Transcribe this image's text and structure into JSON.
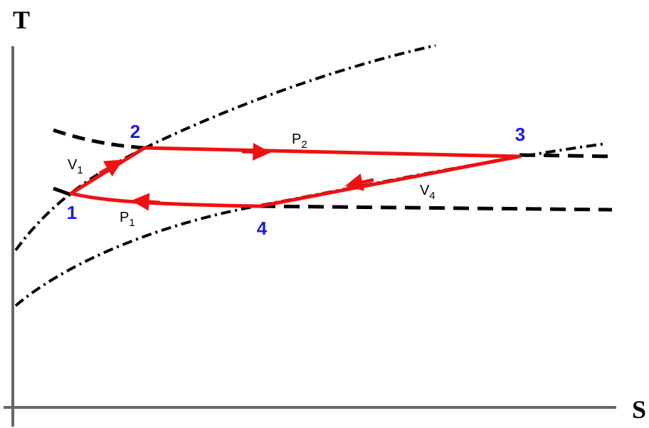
{
  "axes": {
    "y_label": "T",
    "x_label": "S"
  },
  "points": [
    {
      "label": "1"
    },
    {
      "label": "2"
    },
    {
      "label": "3"
    },
    {
      "label": "4"
    }
  ],
  "processes": [
    {
      "label": "V",
      "subscript": "1"
    },
    {
      "label": "P",
      "subscript": "2"
    },
    {
      "label": "V",
      "subscript": "4"
    },
    {
      "label": "P",
      "subscript": "1"
    }
  ]
}
